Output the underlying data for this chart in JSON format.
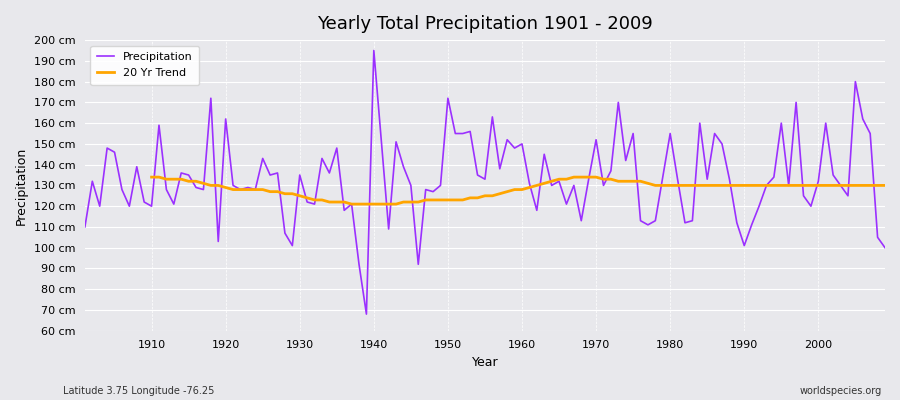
{
  "title": "Yearly Total Precipitation 1901 - 2009",
  "xlabel": "Year",
  "ylabel": "Precipitation",
  "subtitle_left": "Latitude 3.75 Longitude -76.25",
  "subtitle_right": "worldspecies.org",
  "ylim": [
    60,
    200
  ],
  "yticks": [
    60,
    70,
    80,
    90,
    100,
    110,
    120,
    130,
    140,
    150,
    160,
    170,
    180,
    190,
    200
  ],
  "precip_color": "#9B30FF",
  "trend_color": "#FFA500",
  "bg_color": "#E8E8EC",
  "grid_color": "#FFFFFF",
  "years": [
    1901,
    1902,
    1903,
    1904,
    1905,
    1906,
    1907,
    1908,
    1909,
    1910,
    1911,
    1912,
    1913,
    1914,
    1915,
    1916,
    1917,
    1918,
    1919,
    1920,
    1921,
    1922,
    1923,
    1924,
    1925,
    1926,
    1927,
    1928,
    1929,
    1930,
    1931,
    1932,
    1933,
    1934,
    1935,
    1936,
    1937,
    1938,
    1939,
    1940,
    1941,
    1942,
    1943,
    1944,
    1945,
    1946,
    1947,
    1948,
    1949,
    1950,
    1951,
    1952,
    1953,
    1954,
    1955,
    1956,
    1957,
    1958,
    1959,
    1960,
    1961,
    1962,
    1963,
    1964,
    1965,
    1966,
    1967,
    1968,
    1969,
    1970,
    1971,
    1972,
    1973,
    1974,
    1975,
    1976,
    1977,
    1978,
    1979,
    1980,
    1981,
    1982,
    1983,
    1984,
    1985,
    1986,
    1987,
    1988,
    1989,
    1990,
    1991,
    1992,
    1993,
    1994,
    1995,
    1996,
    1997,
    1998,
    1999,
    2000,
    2001,
    2002,
    2003,
    2004,
    2005,
    2006,
    2007,
    2008,
    2009
  ],
  "precip": [
    110,
    132,
    120,
    148,
    146,
    128,
    120,
    139,
    122,
    120,
    159,
    128,
    121,
    136,
    135,
    129,
    128,
    172,
    103,
    162,
    130,
    128,
    129,
    128,
    143,
    135,
    136,
    107,
    101,
    135,
    122,
    121,
    143,
    136,
    148,
    118,
    121,
    92,
    68,
    195,
    152,
    109,
    151,
    139,
    130,
    92,
    128,
    127,
    130,
    172,
    155,
    155,
    156,
    135,
    133,
    163,
    138,
    152,
    148,
    150,
    131,
    118,
    145,
    130,
    132,
    121,
    130,
    113,
    133,
    152,
    130,
    137,
    170,
    142,
    155,
    113,
    111,
    113,
    134,
    155,
    133,
    112,
    113,
    160,
    133,
    155,
    150,
    133,
    112,
    101,
    111,
    120,
    130,
    134,
    160,
    130,
    170,
    125,
    120,
    132,
    160,
    135,
    130,
    125,
    180,
    162,
    155,
    105,
    100
  ],
  "trend": [
    null,
    null,
    null,
    null,
    null,
    null,
    null,
    null,
    null,
    134,
    134,
    133,
    133,
    133,
    132,
    132,
    131,
    130,
    130,
    129,
    128,
    128,
    128,
    128,
    128,
    127,
    127,
    126,
    126,
    125,
    124,
    123,
    123,
    122,
    122,
    122,
    121,
    121,
    121,
    121,
    121,
    121,
    121,
    122,
    122,
    122,
    123,
    123,
    123,
    123,
    123,
    123,
    124,
    124,
    125,
    125,
    126,
    127,
    128,
    128,
    129,
    130,
    131,
    132,
    133,
    133,
    134,
    134,
    134,
    134,
    133,
    133,
    132,
    132,
    132,
    132,
    131,
    130,
    130,
    130,
    130,
    130,
    130,
    130,
    130,
    130,
    130,
    130,
    130,
    130,
    130,
    130,
    130,
    130,
    130,
    130,
    130,
    130,
    130,
    130,
    130,
    130,
    130,
    130,
    130,
    130,
    130,
    130,
    130,
    130
  ]
}
